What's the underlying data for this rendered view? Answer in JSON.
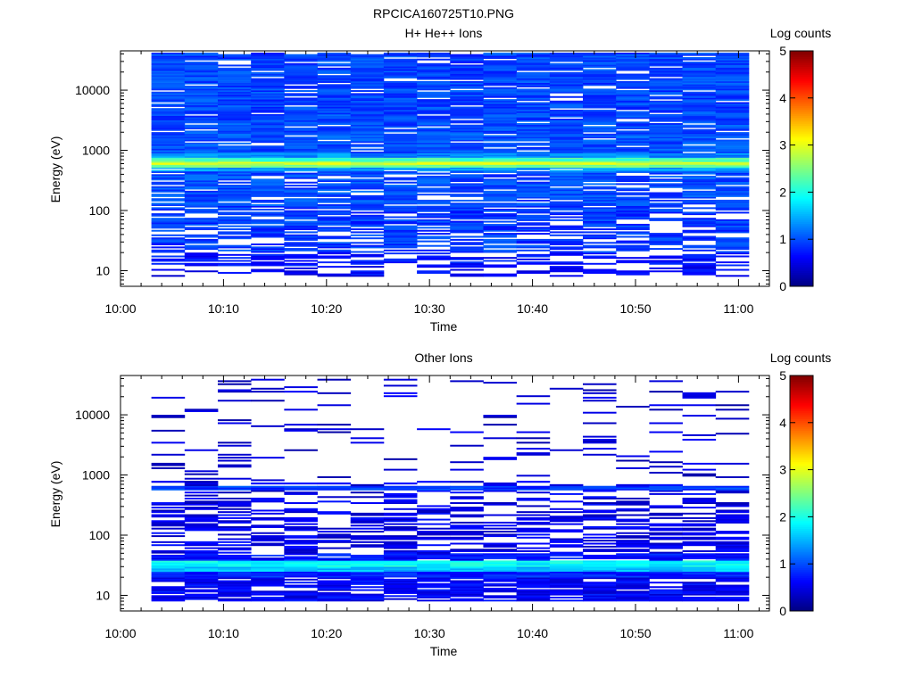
{
  "figure_title": "RPCICA160725T10.PNG",
  "chart_data": [
    {
      "type": "heatmap",
      "title": "H+ He++ Ions",
      "xlabel": "Time",
      "ylabel": "Energy (eV)",
      "x_ticks": [
        "10:00",
        "10:10",
        "10:20",
        "10:30",
        "10:40",
        "10:50",
        "11:00"
      ],
      "x_range": [
        "10:00",
        "11:03"
      ],
      "y_scale": "log",
      "y_ticks": [
        "10",
        "100",
        "1000",
        "10000"
      ],
      "y_range": [
        5.5,
        45000
      ],
      "colorbar": {
        "label": "Log counts",
        "ticks": [
          "0",
          "1",
          "2",
          "3",
          "4",
          "5"
        ],
        "range": [
          0,
          5
        ]
      },
      "x_start": "10:03",
      "x_end": "11:01",
      "time_bins": 18,
      "bands": [
        {
          "emin": 8,
          "emax": 12,
          "level": 0.6,
          "fill": 0.45
        },
        {
          "emin": 12,
          "emax": 20,
          "level": 0.7,
          "fill": 0.5
        },
        {
          "emin": 20,
          "emax": 45,
          "level": 0.9,
          "fill": 0.6
        },
        {
          "emin": 45,
          "emax": 120,
          "level": 0.9,
          "fill": 0.7
        },
        {
          "emin": 120,
          "emax": 450,
          "level": 1.0,
          "fill": 0.78
        },
        {
          "emin": 450,
          "emax": 520,
          "level": 1.4,
          "fill": 0.95
        },
        {
          "emin": 520,
          "emax": 580,
          "level": 2.4,
          "fill": 1.0
        },
        {
          "emin": 580,
          "emax": 650,
          "level": 2.9,
          "fill": 1.0
        },
        {
          "emin": 650,
          "emax": 760,
          "level": 2.2,
          "fill": 1.0
        },
        {
          "emin": 760,
          "emax": 900,
          "level": 1.3,
          "fill": 1.0
        },
        {
          "emin": 900,
          "emax": 3000,
          "level": 1.0,
          "fill": 0.88
        },
        {
          "emin": 3000,
          "emax": 42000,
          "level": 0.95,
          "fill": 0.9
        }
      ]
    },
    {
      "type": "heatmap",
      "title": "Other Ions",
      "xlabel": "Time",
      "ylabel": "Energy (eV)",
      "x_ticks": [
        "10:00",
        "10:10",
        "10:20",
        "10:30",
        "10:40",
        "10:50",
        "11:00"
      ],
      "x_range": [
        "10:00",
        "11:03"
      ],
      "y_scale": "log",
      "y_ticks": [
        "10",
        "100",
        "1000",
        "10000"
      ],
      "y_range": [
        5.5,
        45000
      ],
      "colorbar": {
        "label": "Log counts",
        "ticks": [
          "0",
          "1",
          "2",
          "3",
          "4",
          "5"
        ],
        "range": [
          0,
          5
        ]
      },
      "x_start": "10:03",
      "x_end": "11:01",
      "time_bins": 18,
      "bands": [
        {
          "emin": 8,
          "emax": 20,
          "level": 0.6,
          "fill": 0.85
        },
        {
          "emin": 20,
          "emax": 25,
          "level": 0.8,
          "fill": 1.0
        },
        {
          "emin": 25,
          "emax": 30,
          "level": 1.6,
          "fill": 1.0
        },
        {
          "emin": 30,
          "emax": 38,
          "level": 1.9,
          "fill": 1.0
        },
        {
          "emin": 38,
          "emax": 50,
          "level": 0.7,
          "fill": 0.8
        },
        {
          "emin": 50,
          "emax": 250,
          "level": 0.5,
          "fill": 0.55
        },
        {
          "emin": 250,
          "emax": 560,
          "level": 0.5,
          "fill": 0.35
        },
        {
          "emin": 560,
          "emax": 660,
          "level": 0.9,
          "fill": 1.0
        },
        {
          "emin": 660,
          "emax": 800,
          "level": 0.5,
          "fill": 0.3
        },
        {
          "emin": 800,
          "emax": 42000,
          "level": 0.4,
          "fill": 0.12
        }
      ]
    }
  ]
}
